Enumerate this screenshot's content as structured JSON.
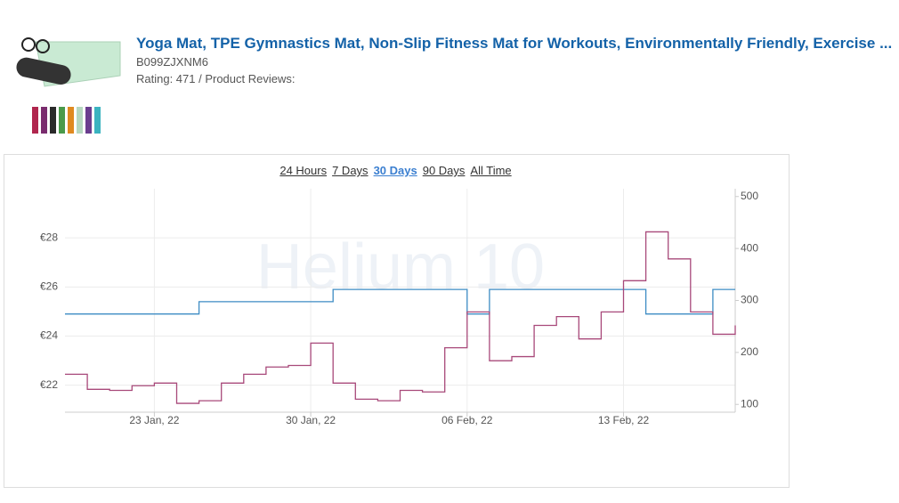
{
  "product": {
    "title": "Yoga Mat, TPE Gymnastics Mat, Non-Slip Fitness Mat for Workouts, Environmentally Friendly, Exercise ...",
    "asin": "B099ZJXNM6",
    "rating_line": "Rating: 471 / Product Reviews:"
  },
  "tabs": {
    "items": [
      "24 Hours",
      "7 Days",
      "30 Days",
      "90 Days",
      "All Time"
    ],
    "active": 2
  },
  "chart_data": {
    "type": "line",
    "watermark": "Helium 10",
    "step": true,
    "xlim": [
      "2022-01-19",
      "2022-02-18"
    ],
    "xticks": [
      {
        "value": "2022-01-23",
        "label": "23 Jan, 22"
      },
      {
        "value": "2022-01-30",
        "label": "30 Jan, 22"
      },
      {
        "value": "2022-02-06",
        "label": "06 Feb, 22"
      },
      {
        "value": "2022-02-13",
        "label": "13 Feb, 22"
      }
    ],
    "ylim": [
      20.9,
      30
    ],
    "yticks": [
      {
        "value": 22,
        "label": "€22"
      },
      {
        "value": 24,
        "label": "€24"
      },
      {
        "value": 26,
        "label": "€26"
      },
      {
        "value": 28,
        "label": "€28"
      }
    ],
    "y2lim": [
      85,
      515
    ],
    "y2ticks": [
      100,
      200,
      300,
      400,
      500
    ],
    "grid": true,
    "series": [
      {
        "color": "#3d8cc4",
        "axis": "y",
        "x": [
          "2022-01-19",
          "2022-01-25",
          "2022-01-31",
          "2022-02-06",
          "2022-02-07",
          "2022-02-14",
          "2022-02-17"
        ],
        "values": [
          24.9,
          25.4,
          25.9,
          24.9,
          25.9,
          24.9,
          25.9
        ]
      },
      {
        "color": "#a8497a",
        "axis": "y2",
        "x": [
          "2022-01-19",
          "2022-01-20",
          "2022-01-21",
          "2022-01-22",
          "2022-01-23",
          "2022-01-24",
          "2022-01-25",
          "2022-01-26",
          "2022-01-27",
          "2022-01-28",
          "2022-01-29",
          "2022-01-30",
          "2022-01-31",
          "2022-02-01",
          "2022-02-02",
          "2022-02-03",
          "2022-02-04",
          "2022-02-05",
          "2022-02-06",
          "2022-02-07",
          "2022-02-08",
          "2022-02-09",
          "2022-02-10",
          "2022-02-11",
          "2022-02-12",
          "2022-02-13",
          "2022-02-14",
          "2022-02-15",
          "2022-02-16",
          "2022-02-17",
          "2022-02-18"
        ],
        "values": [
          158,
          129,
          127,
          136,
          141,
          102,
          107,
          141,
          158,
          172,
          175,
          218,
          141,
          110,
          107,
          127,
          124,
          209,
          278,
          184,
          192,
          252,
          269,
          226,
          278,
          338,
          432,
          380,
          278,
          235,
          252
        ]
      }
    ]
  }
}
